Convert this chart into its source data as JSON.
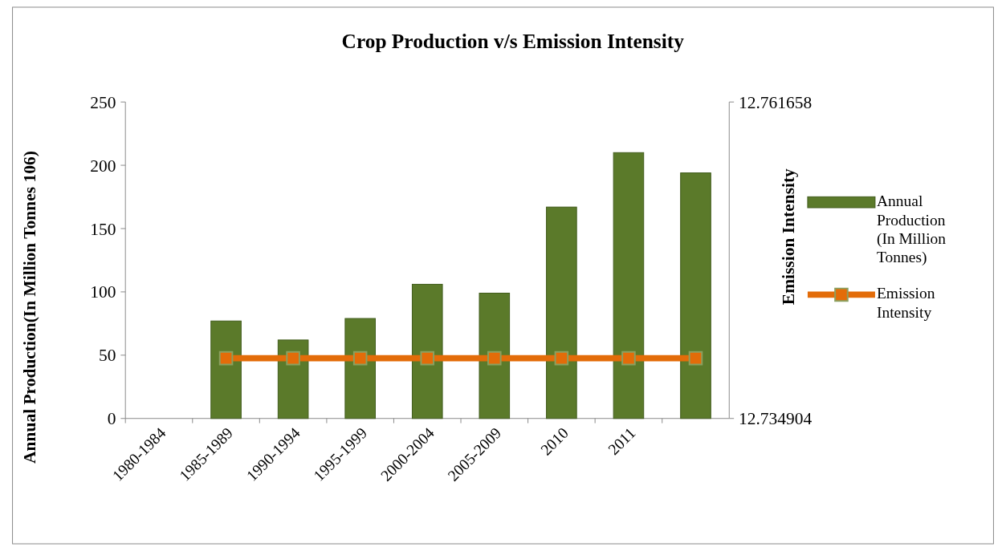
{
  "chart_data": {
    "type": "bar",
    "title": "Crop Production v/s Emission Intensity",
    "ylabel": "Annual Production(In Million Tonnes 106)",
    "y2label": "Emission Intensity",
    "categories": [
      "1980-1984",
      "1985-1989",
      "1990-1994",
      "1995-1999",
      "2000-2004",
      "2005-2009",
      "2010",
      "2011",
      null
    ],
    "series": [
      {
        "name": "Annual Production (In Million Tonnes)",
        "color": "#5b7a2a",
        "values": [
          null,
          77,
          62,
          79,
          106,
          99,
          167,
          210,
          194
        ]
      },
      {
        "name": "Emission Intensity",
        "type": "line",
        "axis": "y2",
        "color": "#e36c09",
        "marker": "square",
        "values": [
          null,
          12.74,
          12.74,
          12.74,
          12.74,
          12.74,
          12.74,
          12.74,
          12.74
        ]
      }
    ],
    "ylim": [
      0,
      250
    ],
    "yticks": [
      0,
      50,
      100,
      150,
      200,
      250
    ],
    "y2lim": [
      12.734904,
      12.761658
    ],
    "y2ticks": [
      12.734904,
      12.761658
    ],
    "grid": false,
    "legend": "right"
  }
}
